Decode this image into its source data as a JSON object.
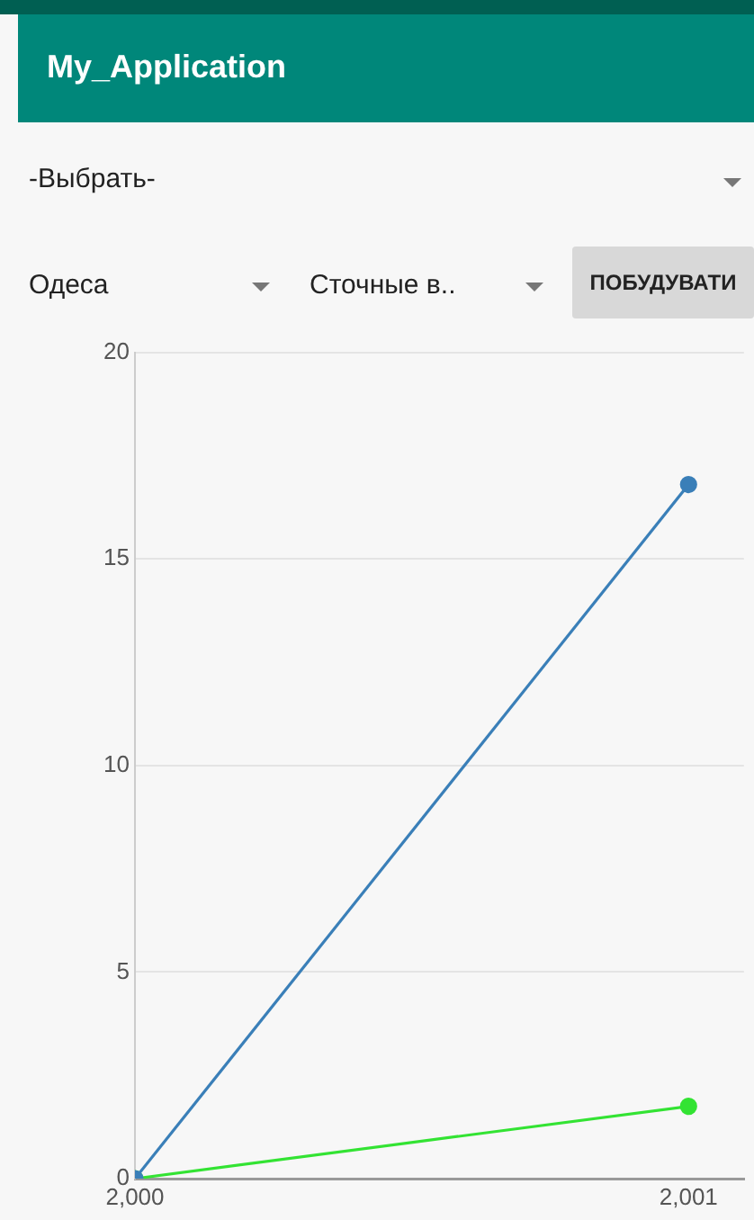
{
  "chart_data": {
    "type": "line",
    "title": "My_Application",
    "annotations": [
      "-Выбрать-",
      "Одеса",
      "Сточные в..",
      "ПОБУДУВАТИ"
    ],
    "x": [
      2000,
      2001
    ],
    "series": [
      {
        "color": "#3a7fb8",
        "values": [
          0,
          16.8
        ]
      },
      {
        "color": "#33e333",
        "values": [
          0,
          1.75
        ]
      }
    ],
    "xlim": [
      2000,
      2001.1
    ],
    "xticks": [
      {
        "value": 2000,
        "label": "2,000"
      },
      {
        "value": 2001,
        "label": "2,001"
      }
    ],
    "ylim": [
      0,
      20
    ],
    "yticks": [
      0,
      5,
      10,
      15,
      20
    ],
    "grid": "y",
    "marker": "circle",
    "line_style": "solid"
  }
}
